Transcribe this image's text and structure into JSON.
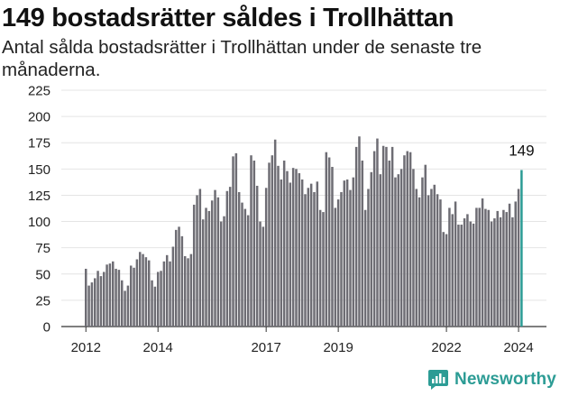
{
  "title": "149 bostadsrätter såldes i Trollhättan",
  "subtitle": "Antal sålda bostadsrätter i Trollhättan under de senaste tre månaderna.",
  "brand": {
    "name": "Newsworthy",
    "icon": "newsworthy-logo-icon",
    "color": "#2c9c95"
  },
  "chart_data": {
    "type": "bar",
    "title": "149 bostadsrätter såldes i Trollhättan",
    "xlabel": "",
    "ylabel": "",
    "ylim": [
      0,
      225
    ],
    "yticks": [
      0,
      25,
      50,
      75,
      100,
      125,
      150,
      175,
      200,
      225
    ],
    "xticks": [
      "2012",
      "2014",
      "2017",
      "2019",
      "2022",
      "2024"
    ],
    "grid": "horizontal",
    "bar_color": "#6e6d74",
    "highlight_color": "#2c9c95",
    "highlight_label": "149",
    "values": [
      55,
      39,
      42,
      46,
      53,
      48,
      52,
      59,
      60,
      62,
      55,
      54,
      44,
      34,
      39,
      58,
      56,
      64,
      71,
      69,
      66,
      63,
      44,
      38,
      52,
      53,
      62,
      68,
      62,
      76,
      92,
      95,
      86,
      67,
      65,
      69,
      116,
      125,
      131,
      102,
      113,
      110,
      120,
      130,
      123,
      100,
      105,
      129,
      133,
      162,
      165,
      128,
      118,
      112,
      106,
      163,
      158,
      134,
      100,
      95,
      132,
      156,
      163,
      178,
      153,
      140,
      158,
      148,
      137,
      151,
      150,
      146,
      140,
      126,
      132,
      136,
      128,
      138,
      111,
      109,
      166,
      161,
      152,
      113,
      121,
      128,
      139,
      140,
      130,
      142,
      171,
      181,
      158,
      111,
      131,
      147,
      167,
      179,
      145,
      172,
      171,
      158,
      171,
      142,
      145,
      150,
      163,
      167,
      166,
      150,
      131,
      123,
      142,
      154,
      125,
      131,
      135,
      126,
      121,
      90,
      88,
      113,
      107,
      119,
      97,
      97,
      103,
      107,
      100,
      98,
      113,
      113,
      122,
      112,
      111,
      100,
      103,
      110,
      104,
      111,
      109,
      117,
      104,
      119,
      131,
      149
    ]
  }
}
